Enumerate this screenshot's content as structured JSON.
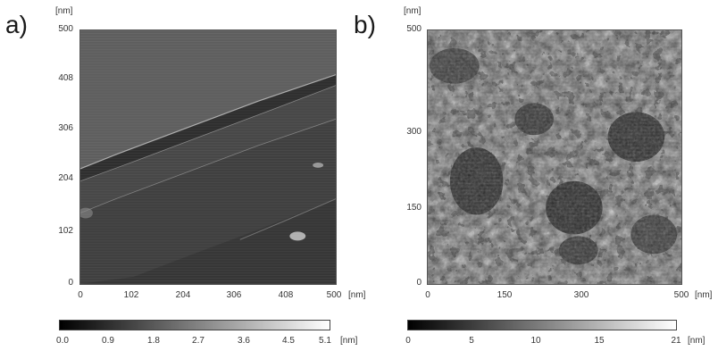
{
  "panels": [
    {
      "label": "a)",
      "y_unit": "[nm]",
      "x_unit": "[nm]",
      "y_ticks": [
        "500",
        "408",
        "306",
        "204",
        "102",
        "0"
      ],
      "x_ticks": [
        "0",
        "102",
        "204",
        "306",
        "408",
        "500"
      ],
      "colorbar_ticks": [
        "0.0",
        "0.9",
        "1.8",
        "2.7",
        "3.6",
        "4.5",
        "5.1"
      ],
      "colorbar_unit": "[nm]"
    },
    {
      "label": "b)",
      "y_unit": "[nm]",
      "x_unit": "[nm]",
      "y_ticks": [
        "500",
        "300",
        "150",
        "0"
      ],
      "x_ticks": [
        "0",
        "150",
        "300",
        "500"
      ],
      "colorbar_ticks": [
        "0",
        "5",
        "10",
        "15",
        "21"
      ],
      "colorbar_unit": "[nm]"
    }
  ],
  "colors": {
    "colorbar_low": "#000000",
    "colorbar_high": "#ffffff"
  }
}
